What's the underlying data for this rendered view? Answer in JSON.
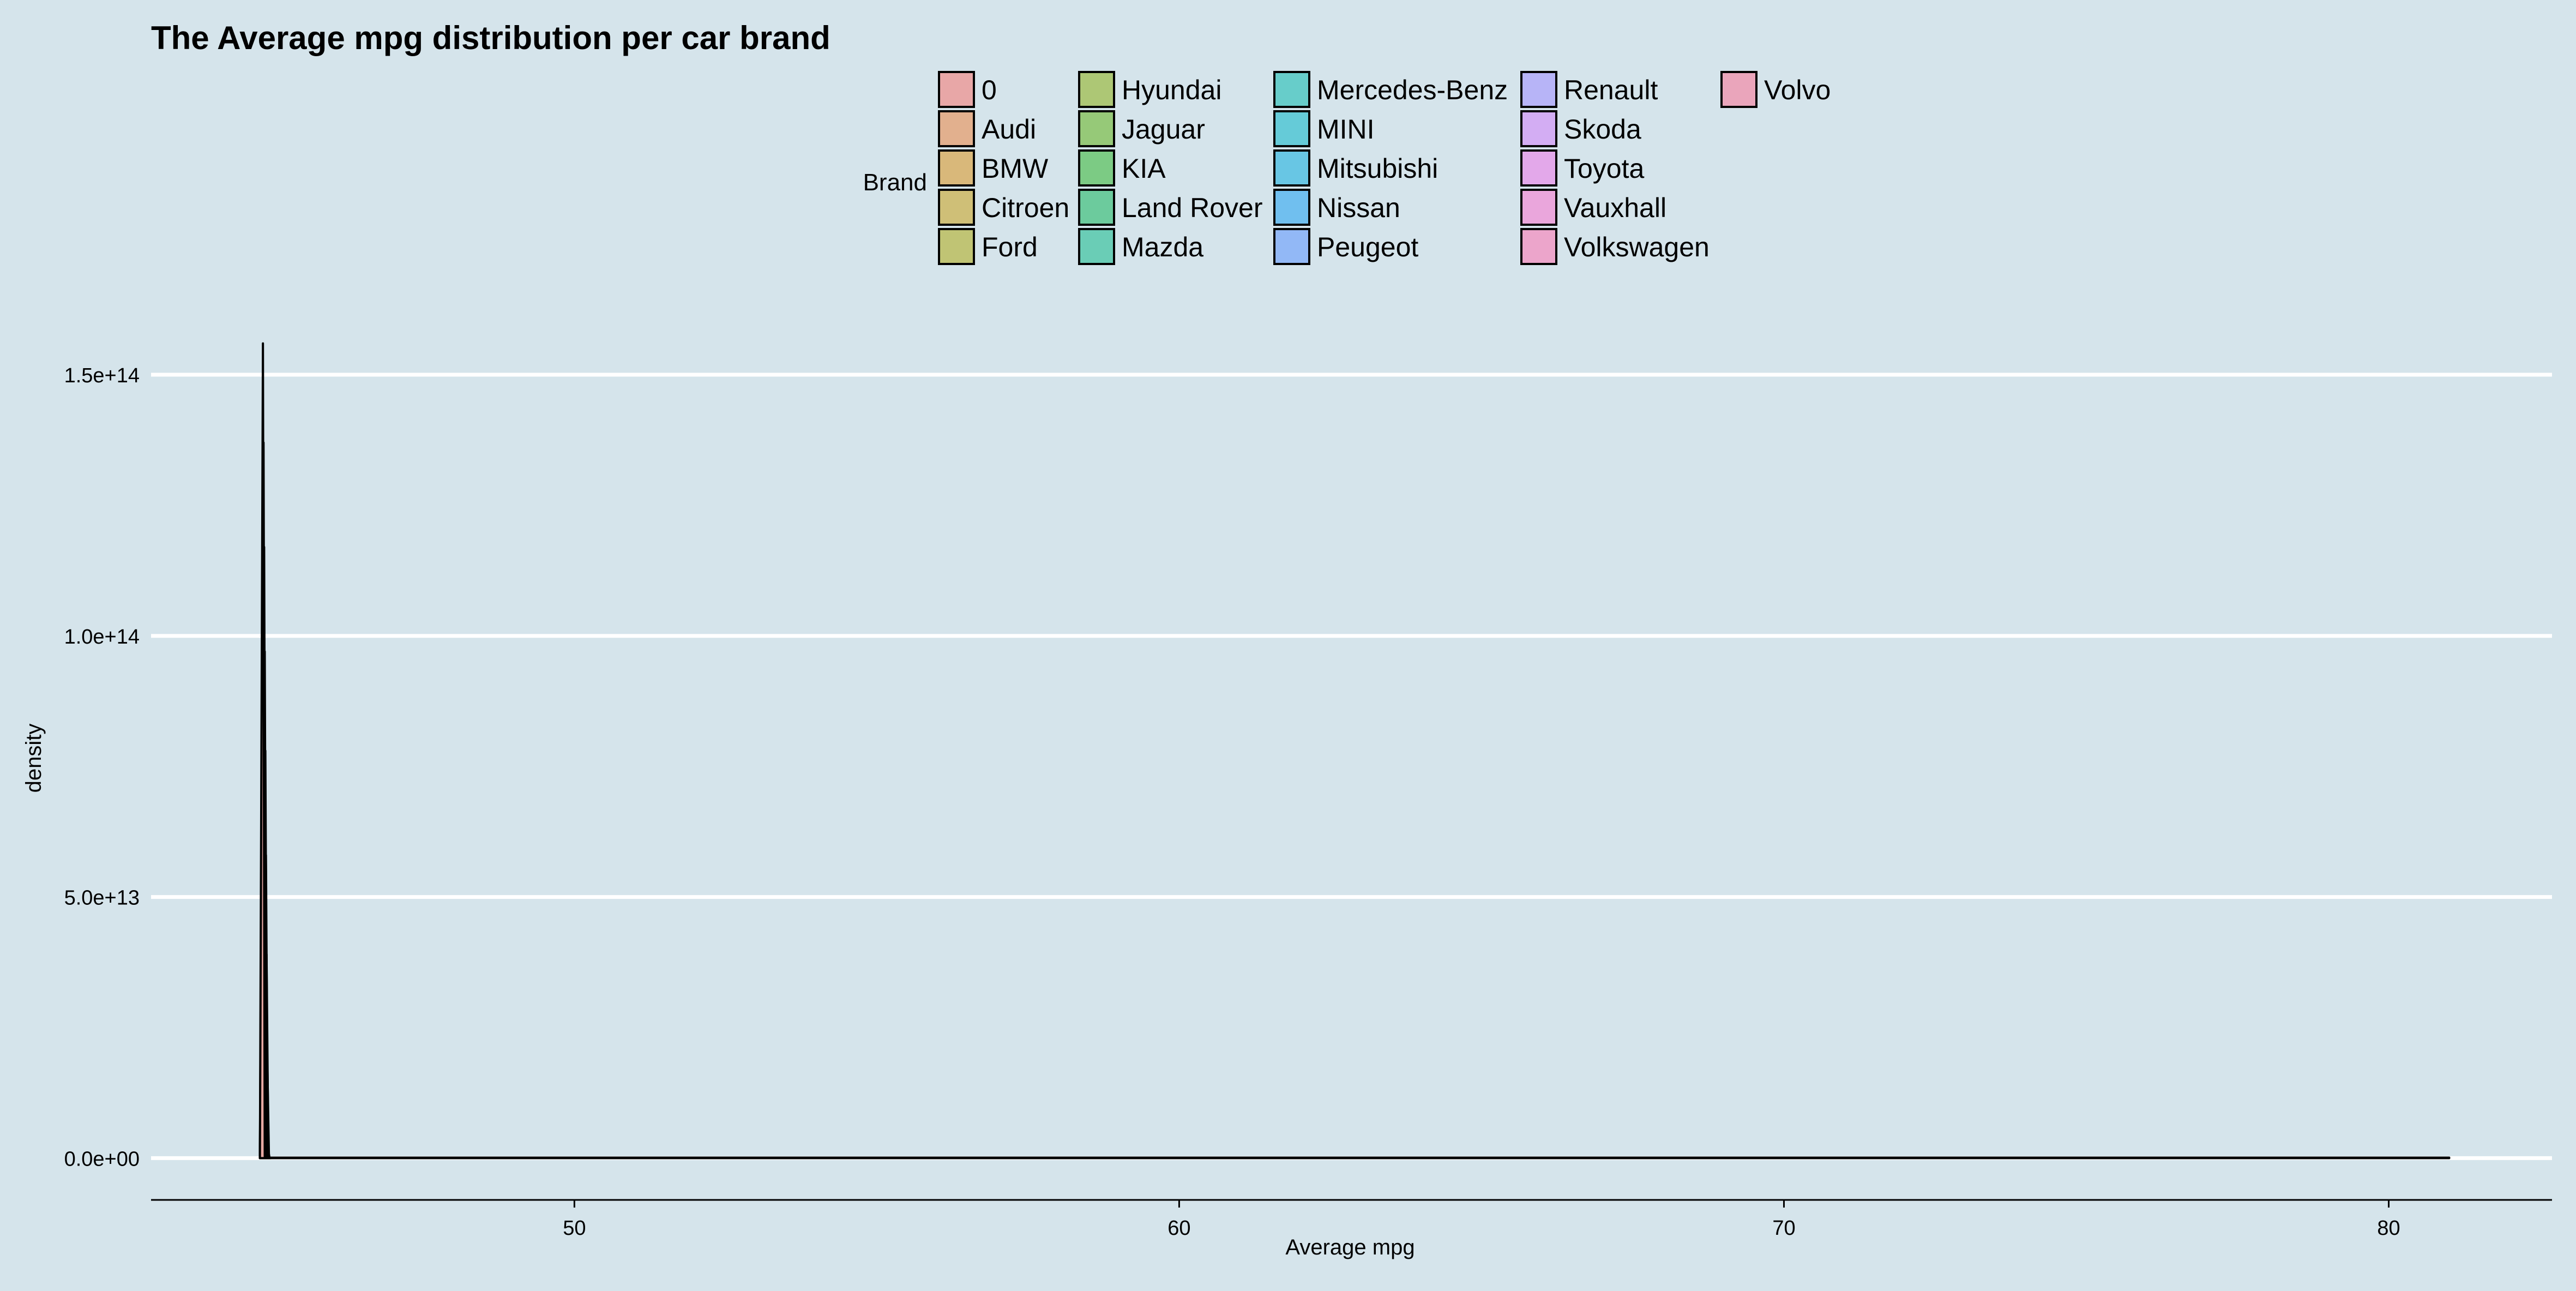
{
  "chart_data": {
    "type": "area",
    "title": "The Average mpg distribution per car brand",
    "xlabel": "Average mpg",
    "ylabel": "density",
    "xlim": [
      43,
      82.7
    ],
    "ylim": [
      -8000000000000.0,
      157000000000000.0
    ],
    "x_ticks": [
      {
        "value": 50,
        "label": "50"
      },
      {
        "value": 60,
        "label": "60"
      },
      {
        "value": 70,
        "label": "70"
      },
      {
        "value": 80,
        "label": "80"
      }
    ],
    "y_ticks": [
      {
        "value": 0,
        "label": "0.0e+00"
      },
      {
        "value": 50000000000000.0,
        "label": "5.0e+13"
      },
      {
        "value": 100000000000000.0,
        "label": "1.0e+14"
      },
      {
        "value": 150000000000000.0,
        "label": "1.5e+14"
      }
    ],
    "grid": "horizontal major lines",
    "legend": {
      "title": "Brand",
      "placement": "top",
      "columns": 5,
      "rows": 5
    },
    "series": [
      {
        "name": "0",
        "color": "#e8a7a7",
        "x": [
          44.8,
          44.85,
          44.88,
          44.9
        ],
        "y": [
          0,
          156000000000000.0,
          0,
          0
        ]
      },
      {
        "name": "Audi",
        "color": "#e2b08e",
        "x": [
          44.8,
          44.86,
          44.89,
          44.9
        ],
        "y": [
          0,
          137000000000000.0,
          0,
          0
        ]
      },
      {
        "name": "BMW",
        "color": "#d9b87a",
        "x": [
          44.8,
          44.87,
          44.9,
          44.92
        ],
        "y": [
          0,
          117000000000000.0,
          0,
          0
        ]
      },
      {
        "name": "Citroen",
        "color": "#cfbf77",
        "x": [
          44.8,
          44.88,
          44.91,
          44.93
        ],
        "y": [
          0,
          97000000000000.0,
          0,
          0
        ]
      },
      {
        "name": "Ford",
        "color": "#c0c474",
        "x": [
          44.8,
          44.89,
          44.92,
          44.94
        ],
        "y": [
          0,
          78000000000000.0,
          0,
          0
        ]
      },
      {
        "name": "Hyundai",
        "color": "#adc775",
        "x": [
          44.8,
          44.9,
          44.93,
          44.95
        ],
        "y": [
          0,
          58000000000000.0,
          0,
          0
        ]
      },
      {
        "name": "Jaguar",
        "color": "#96c978",
        "x": [
          44.8,
          44.91,
          44.94,
          44.96
        ],
        "y": [
          0,
          39000000000000.0,
          0,
          0
        ]
      },
      {
        "name": "KIA",
        "color": "#7ccb84",
        "x": [
          44.8,
          44.92,
          44.95,
          44.97
        ],
        "y": [
          0,
          20000000000000.0,
          0,
          0
        ]
      },
      {
        "name": "Land Rover",
        "color": "#6ccb9d",
        "x": [
          44.8,
          44.93,
          44.96,
          44.98
        ],
        "y": [
          0,
          2000000000000.0,
          0,
          0
        ]
      },
      {
        "name": "Mazda",
        "color": "#6acdb6",
        "x": [
          44.8,
          44.9,
          81,
          81
        ],
        "y": [
          0,
          100000000000.0,
          100000000000.0,
          0
        ]
      },
      {
        "name": "Mercedes-Benz",
        "color": "#67cdca",
        "x": [
          44.8,
          44.9,
          44.92
        ],
        "y": [
          0,
          100000000000.0,
          0
        ]
      },
      {
        "name": "MINI",
        "color": "#65cbd8",
        "x": [
          44.8,
          44.9,
          44.92
        ],
        "y": [
          0,
          100000000000.0,
          0
        ]
      },
      {
        "name": "Mitsubishi",
        "color": "#68c6e4",
        "x": [
          44.8,
          44.9,
          44.92
        ],
        "y": [
          0,
          100000000000.0,
          0
        ]
      },
      {
        "name": "Nissan",
        "color": "#70bfef",
        "x": [
          44.8,
          44.9,
          44.92
        ],
        "y": [
          0,
          100000000000.0,
          0
        ]
      },
      {
        "name": "Peugeot",
        "color": "#92b8f6",
        "x": [
          44.8,
          44.9,
          44.92
        ],
        "y": [
          0,
          100000000000.0,
          0
        ]
      },
      {
        "name": "Renault",
        "color": "#b7b4f7",
        "x": [
          44.8,
          44.9,
          44.92
        ],
        "y": [
          0,
          100000000000.0,
          0
        ]
      },
      {
        "name": "Skoda",
        "color": "#d3adf3",
        "x": [
          44.8,
          44.9,
          44.92
        ],
        "y": [
          0,
          100000000000.0,
          0
        ]
      },
      {
        "name": "Toyota",
        "color": "#e3a8ea",
        "x": [
          44.8,
          44.9,
          44.92
        ],
        "y": [
          0,
          100000000000.0,
          0
        ]
      },
      {
        "name": "Vauxhall",
        "color": "#eaa6dc",
        "x": [
          44.8,
          44.9,
          44.92
        ],
        "y": [
          0,
          100000000000.0,
          0
        ]
      },
      {
        "name": "Volkswagen",
        "color": "#eca5cb",
        "x": [
          44.8,
          44.9,
          44.92
        ],
        "y": [
          0,
          100000000000.0,
          0
        ]
      },
      {
        "name": "Volvo",
        "color": "#eaa5bb",
        "x": [
          44.8,
          44.9,
          44.92
        ],
        "y": [
          0,
          100000000000.0,
          0
        ]
      }
    ]
  },
  "colors": {
    "background": "#d5e4eb",
    "grid": "#ffffff",
    "axis": "#000000",
    "outline": "#000000"
  }
}
